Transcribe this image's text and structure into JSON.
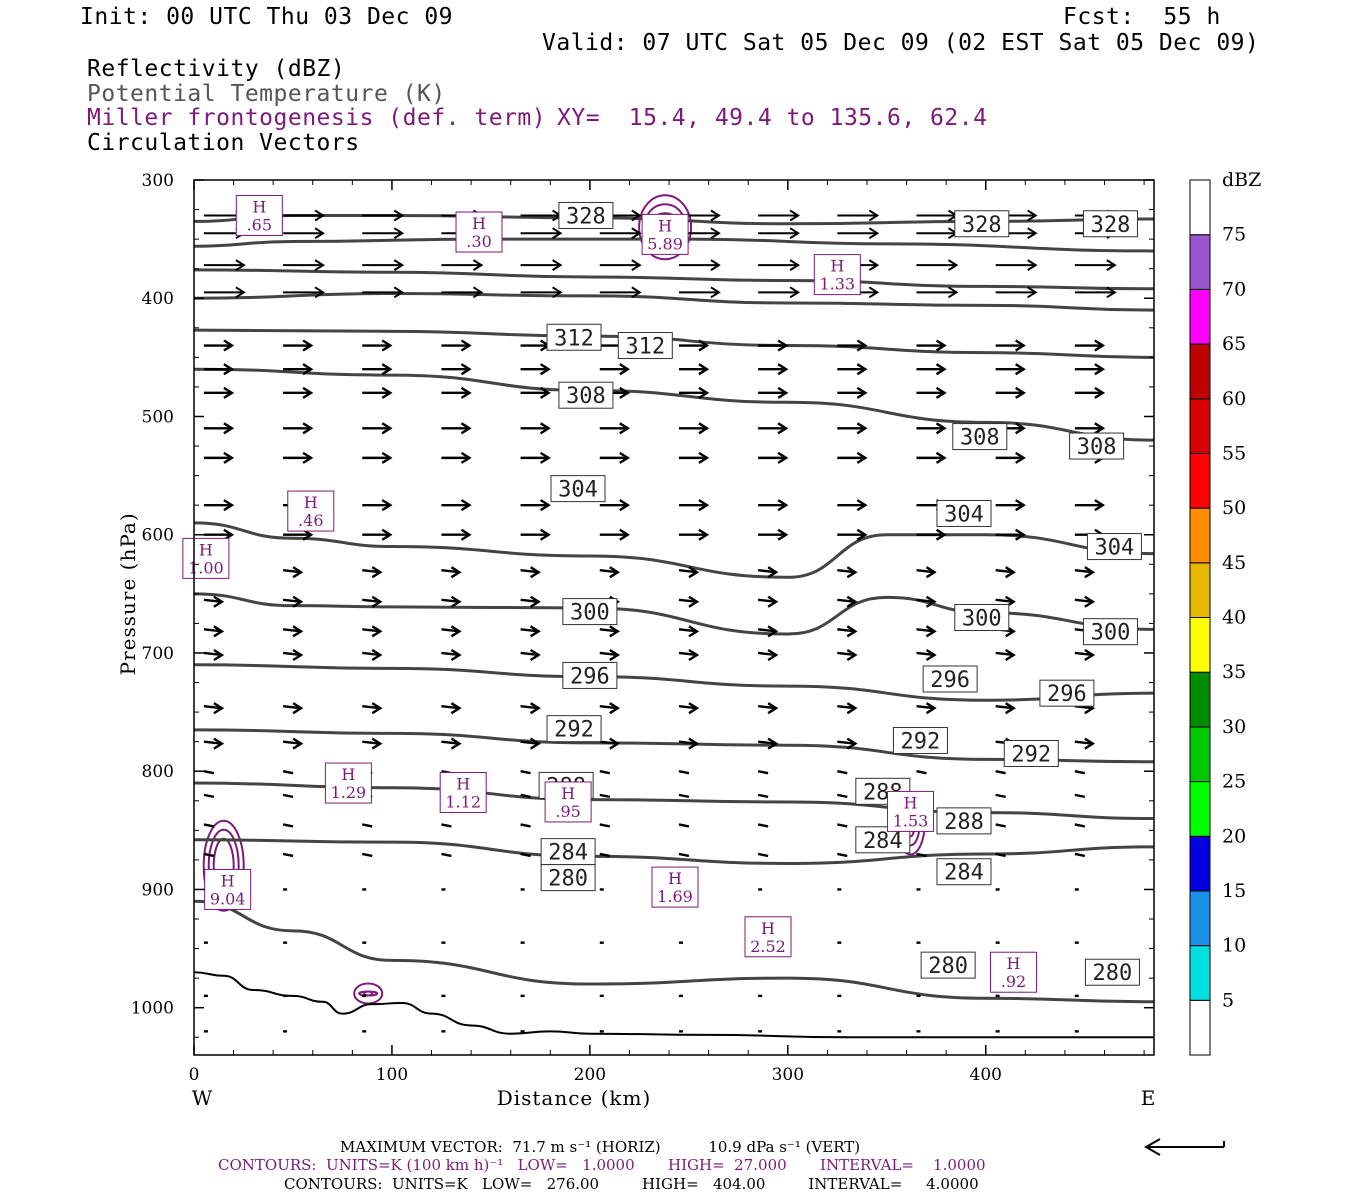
{
  "header": {
    "init": "Init: 00 UTC Thu 03 Dec 09",
    "fcst": "Fcst:  55 h",
    "valid": "Valid: 07 UTC Sat 05 Dec 09 (02 EST Sat 05 Dec 09)",
    "field1": "Reflectivity (dBZ)",
    "field2": "Potential Temperature (K)",
    "field3": "Miller frontogenesis (def. term)",
    "xy": "XY=  15.4, 49.4 to 135.6, 62.4",
    "field4": "Circulation Vectors"
  },
  "colors": {
    "theta": "#444444",
    "fronto": "#7a1a7a",
    "terrain": "#000000"
  },
  "chart_data": {
    "type": "contour cross-section",
    "xlabel": "Distance (km)",
    "ylabel": "Pressure (hPa)",
    "xlim": [
      0,
      485
    ],
    "ylim": [
      1040,
      300
    ],
    "x_ticks": [
      "0",
      "100",
      "200",
      "300",
      "400"
    ],
    "y_ticks": [
      "300",
      "400",
      "500",
      "600",
      "700",
      "800",
      "900",
      "1000"
    ],
    "west_label": "W",
    "east_label": "E",
    "theta_contours": [
      {
        "value": 328,
        "points": [
          [
            0,
            335
          ],
          [
            50,
            330
          ],
          [
            100,
            330
          ],
          [
            200,
            332
          ],
          [
            300,
            337
          ],
          [
            400,
            335
          ],
          [
            485,
            333
          ]
        ],
        "labels": [
          [
            198,
            330
          ],
          [
            398,
            337
          ],
          [
            463,
            337
          ]
        ]
      },
      {
        "value": 324,
        "points": [
          [
            0,
            356
          ],
          [
            50,
            352
          ],
          [
            150,
            350
          ],
          [
            250,
            350
          ],
          [
            350,
            354
          ],
          [
            485,
            360
          ]
        ],
        "labels": []
      },
      {
        "value": 320,
        "points": [
          [
            0,
            376
          ],
          [
            100,
            378
          ],
          [
            200,
            382
          ],
          [
            300,
            385
          ],
          [
            400,
            390
          ],
          [
            485,
            392
          ]
        ],
        "labels": []
      },
      {
        "value": 316,
        "points": [
          [
            0,
            400
          ],
          [
            100,
            396
          ],
          [
            200,
            398
          ],
          [
            300,
            404
          ],
          [
            400,
            406
          ],
          [
            485,
            410
          ]
        ],
        "labels": []
      },
      {
        "value": 312,
        "points": [
          [
            0,
            427
          ],
          [
            100,
            428
          ],
          [
            200,
            432
          ],
          [
            300,
            440
          ],
          [
            400,
            446
          ],
          [
            485,
            450
          ]
        ],
        "labels": [
          [
            192,
            433
          ],
          [
            228,
            440
          ]
        ]
      },
      {
        "value": 308,
        "points": [
          [
            0,
            460
          ],
          [
            100,
            465
          ],
          [
            200,
            478
          ],
          [
            300,
            488
          ],
          [
            400,
            505
          ],
          [
            485,
            520
          ]
        ],
        "labels": [
          [
            198,
            482
          ],
          [
            397,
            517
          ],
          [
            456,
            525
          ]
        ]
      },
      {
        "value": 304,
        "points": [
          [
            0,
            590
          ],
          [
            50,
            603
          ],
          [
            100,
            610
          ],
          [
            200,
            618
          ],
          [
            300,
            636
          ],
          [
            350,
            600
          ],
          [
            400,
            600
          ],
          [
            485,
            616
          ]
        ],
        "labels": [
          [
            194,
            561
          ],
          [
            389,
            582
          ],
          [
            465,
            610
          ]
        ]
      },
      {
        "value": 300,
        "points": [
          [
            0,
            650
          ],
          [
            50,
            660
          ],
          [
            100,
            661
          ],
          [
            200,
            662
          ],
          [
            300,
            684
          ],
          [
            350,
            653
          ],
          [
            400,
            666
          ],
          [
            485,
            680
          ]
        ],
        "labels": [
          [
            200,
            665
          ],
          [
            398,
            670
          ],
          [
            463,
            682
          ]
        ]
      },
      {
        "value": 296,
        "points": [
          [
            0,
            710
          ],
          [
            100,
            713
          ],
          [
            200,
            720
          ],
          [
            300,
            728
          ],
          [
            400,
            740
          ],
          [
            485,
            734
          ]
        ],
        "labels": [
          [
            200,
            719
          ],
          [
            382,
            722
          ],
          [
            441,
            734
          ]
        ]
      },
      {
        "value": 292,
        "points": [
          [
            0,
            765
          ],
          [
            100,
            768
          ],
          [
            200,
            776
          ],
          [
            300,
            778
          ],
          [
            400,
            790
          ],
          [
            485,
            792
          ]
        ],
        "labels": [
          [
            192,
            764
          ],
          [
            367,
            774
          ],
          [
            423,
            785
          ]
        ]
      },
      {
        "value": 288,
        "points": [
          [
            0,
            810
          ],
          [
            100,
            814
          ],
          [
            200,
            824
          ],
          [
            300,
            826
          ],
          [
            400,
            835
          ],
          [
            485,
            840
          ]
        ],
        "labels": [
          [
            188,
            812
          ],
          [
            348,
            817
          ],
          [
            389,
            842
          ]
        ]
      },
      {
        "value": 284,
        "points": [
          [
            0,
            858
          ],
          [
            100,
            860
          ],
          [
            200,
            872
          ],
          [
            300,
            878
          ],
          [
            400,
            870
          ],
          [
            485,
            864
          ]
        ],
        "labels": [
          [
            189,
            868
          ],
          [
            348,
            858
          ],
          [
            389,
            885
          ]
        ]
      },
      {
        "value": 280,
        "points": [
          [
            0,
            910
          ],
          [
            50,
            935
          ],
          [
            100,
            960
          ],
          [
            200,
            980
          ],
          [
            300,
            975
          ],
          [
            400,
            992
          ],
          [
            485,
            995
          ]
        ],
        "labels": [
          [
            189,
            890
          ],
          [
            381,
            964
          ],
          [
            464,
            970
          ]
        ]
      }
    ],
    "fronto_maxima": [
      {
        "x": 33,
        "p": 330,
        "value": ".65"
      },
      {
        "x": 144,
        "p": 344,
        "value": ".30"
      },
      {
        "x": 238,
        "p": 346,
        "value": "5.89"
      },
      {
        "x": 325,
        "p": 380,
        "value": "1.33"
      },
      {
        "x": 59,
        "p": 580,
        "value": ".46"
      },
      {
        "x": 6,
        "p": 620,
        "value": "1.00"
      },
      {
        "x": 78,
        "p": 810,
        "value": "1.29"
      },
      {
        "x": 136,
        "p": 818,
        "value": "1.12"
      },
      {
        "x": 189,
        "p": 826,
        "value": ".95"
      },
      {
        "x": 362,
        "p": 834,
        "value": "1.53"
      },
      {
        "x": 17,
        "p": 900,
        "value": "9.04"
      },
      {
        "x": 243,
        "p": 898,
        "value": "1.69"
      },
      {
        "x": 290,
        "p": 940,
        "value": "2.52"
      },
      {
        "x": 414,
        "p": 970,
        "value": ".92"
      }
    ],
    "fronto_max_label": "H",
    "colorbar": {
      "unit": "dBZ",
      "levels": [
        "5",
        "10",
        "15",
        "20",
        "25",
        "30",
        "35",
        "40",
        "45",
        "50",
        "55",
        "60",
        "65",
        "70",
        "75"
      ],
      "colors": [
        "#ffffff",
        "#00e0e0",
        "#1a90e8",
        "#0000e0",
        "#00ff00",
        "#00c800",
        "#008c00",
        "#ffff00",
        "#e6b800",
        "#ff8c00",
        "#ff0000",
        "#d90000",
        "#bf0000",
        "#ff00ff",
        "#9955cc",
        "#ffffff"
      ]
    }
  },
  "footer": {
    "max_vector": "MAXIMUM VECTOR:  71.7 m s⁻¹ (HORIZ)          10.9 dPa s⁻¹ (VERT)",
    "contours1": "CONTOURS:  UNITS=K (100 km h)⁻¹   LOW=   1.0000       HIGH=  27.000       INTERVAL=    1.0000",
    "contours2": "CONTOURS:  UNITS=K   LOW=   276.00         HIGH=   404.00         INTERVAL=     4.0000"
  }
}
